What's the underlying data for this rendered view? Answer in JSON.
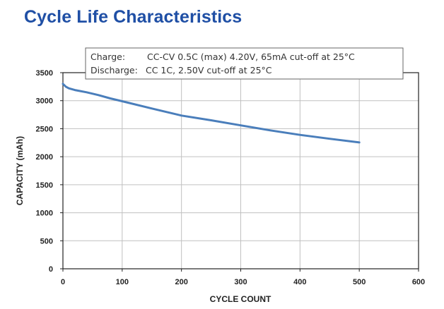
{
  "page_title": "Cycle Life Characteristics",
  "annotation": {
    "line1_label": "Charge:",
    "line1_value": "CC-CV 0.5C (max) 4.20V, 65mA cut-off at 25°C",
    "line2_label": "Discharge:",
    "line2_value": "CC 1C, 2.50V cut-off at 25°C"
  },
  "colors": {
    "title": "#1f4fa5",
    "series": "#4a7ebb",
    "grid": "#c0c0c0"
  },
  "chart_data": {
    "type": "line",
    "title": "",
    "xlabel": "CYCLE COUNT",
    "ylabel": "CAPACITY (mAh)",
    "xlim": [
      0,
      600
    ],
    "ylim": [
      0,
      3500
    ],
    "xticks": [
      0,
      100,
      200,
      300,
      400,
      500,
      600
    ],
    "yticks": [
      0,
      500,
      1000,
      1500,
      2000,
      2500,
      3000,
      3500
    ],
    "grid": true,
    "series": [
      {
        "x": [
          0,
          5,
          10,
          20,
          40,
          60,
          80,
          100,
          150,
          200,
          250,
          300,
          350,
          400,
          450,
          500
        ],
        "y": [
          3300,
          3250,
          3220,
          3190,
          3150,
          3100,
          3040,
          2990,
          2860,
          2735,
          2650,
          2560,
          2470,
          2390,
          2320,
          2255
        ]
      }
    ]
  }
}
